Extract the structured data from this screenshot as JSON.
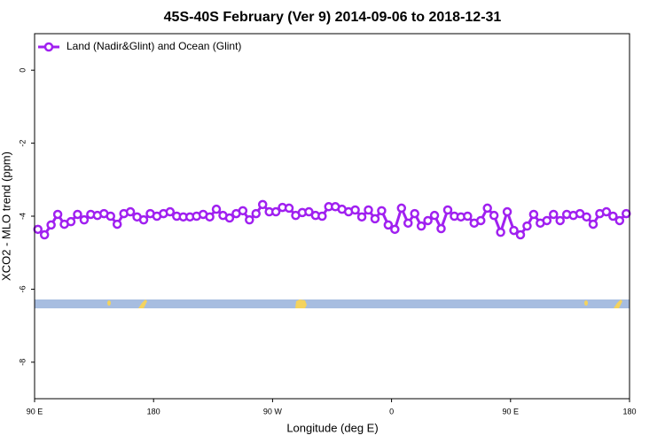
{
  "chart_data": {
    "type": "line",
    "title": "45S-40S February (Ver 9)   2014-09-06 to 2018-12-31",
    "x_label": "Longitude (deg E)",
    "y_label": "XCO2 - MLO trend (ppm)",
    "xlim": [
      90,
      540
    ],
    "ylim": [
      -9,
      1
    ],
    "xticks": [
      {
        "value": 90,
        "label": "90 E"
      },
      {
        "value": 180,
        "label": "180"
      },
      {
        "value": 270,
        "label": "90 W"
      },
      {
        "value": 360,
        "label": "0"
      },
      {
        "value": 450,
        "label": "90 E"
      },
      {
        "value": 540,
        "label": "180"
      }
    ],
    "yticks": [
      -8,
      -6,
      -4,
      -2,
      0
    ],
    "legend": "top-left",
    "x": [
      92.5,
      97.5,
      102.5,
      107.5,
      112.5,
      117.5,
      122.5,
      127.5,
      132.5,
      137.5,
      142.5,
      147.5,
      152.5,
      157.5,
      162.5,
      167.5,
      172.5,
      177.5,
      182.5,
      187.5,
      192.5,
      197.5,
      202.5,
      207.5,
      212.5,
      217.5,
      222.5,
      227.5,
      232.5,
      237.5,
      242.5,
      247.5,
      252.5,
      257.5,
      262.5,
      267.5,
      272.5,
      277.5,
      282.5,
      287.5,
      292.5,
      297.5,
      302.5,
      307.5,
      312.5,
      317.5,
      322.5,
      327.5,
      332.5,
      337.5,
      342.5,
      347.5,
      352.5,
      357.5,
      362.5,
      367.5,
      372.5,
      377.5,
      382.5,
      387.5,
      392.5,
      397.5,
      402.5,
      407.5,
      412.5,
      417.5,
      422.5,
      427.5,
      432.5,
      437.5,
      442.5,
      447.5,
      452.5,
      457.5,
      462.5,
      467.5,
      472.5,
      477.5,
      482.5,
      487.5,
      492.5,
      497.5,
      502.5,
      507.5,
      512.5,
      517.5,
      522.5,
      527.5,
      532.5,
      537.5
    ],
    "series": [
      {
        "name": "Land (Nadir&Glint) and Ocean (Glint)",
        "color": "#a020f0",
        "values": [
          -4.36,
          -4.51,
          -4.24,
          -3.95,
          -4.22,
          -4.15,
          -3.95,
          -4.1,
          -3.95,
          -3.98,
          -3.93,
          -4.0,
          -4.22,
          -3.93,
          -3.88,
          -4.02,
          -4.1,
          -3.93,
          -4.0,
          -3.93,
          -3.88,
          -4.0,
          -4.02,
          -4.02,
          -4.0,
          -3.95,
          -4.02,
          -3.81,
          -3.98,
          -4.05,
          -3.93,
          -3.85,
          -4.1,
          -3.93,
          -3.68,
          -3.88,
          -3.88,
          -3.76,
          -3.78,
          -3.98,
          -3.9,
          -3.88,
          -3.98,
          -4.0,
          -3.74,
          -3.74,
          -3.81,
          -3.88,
          -3.83,
          -4.02,
          -3.83,
          -4.07,
          -3.85,
          -4.24,
          -4.36,
          -3.78,
          -4.19,
          -3.93,
          -4.27,
          -4.12,
          -3.98,
          -4.34,
          -3.83,
          -4.0,
          -4.02,
          -4.0,
          -4.19,
          -4.12,
          -3.78,
          -3.98,
          -4.44,
          -3.88,
          -4.39,
          -4.51,
          -4.27,
          -3.95,
          -4.19,
          -4.12,
          -3.95,
          -4.12,
          -3.95,
          -3.98,
          -3.93,
          -4.02,
          -4.22,
          -3.93,
          -3.88,
          -4.0,
          -4.12,
          -3.93
        ]
      }
    ]
  }
}
